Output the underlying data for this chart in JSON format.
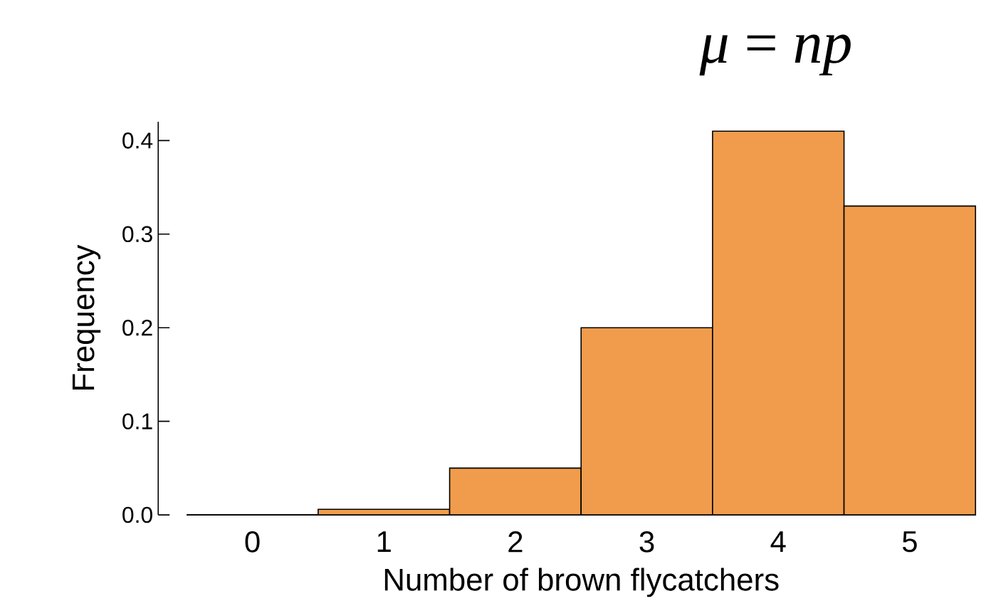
{
  "chart_data": {
    "type": "histogram",
    "title": "*μ* = *np*",
    "xlabel": "Number of brown flycatchers",
    "ylabel": "Frequency",
    "bins": [
      -0.5,
      0.5,
      1.5,
      2.5,
      3.5,
      4.5,
      5.5
    ],
    "values": [
      0,
      0.006,
      0.05,
      0.2,
      0.41,
      0.33
    ],
    "color": "#f09c4c",
    "xlim": [
      -0.5,
      5.5
    ],
    "ylim": [
      0,
      0.42
    ],
    "xticks": [
      0,
      1,
      2,
      3,
      4,
      5
    ],
    "yticks": [
      {
        "value": 0,
        "label": "0.0"
      },
      {
        "value": 0.1,
        "label": "0.1"
      },
      {
        "value": 0.2,
        "label": "0.2"
      },
      {
        "value": 0.3,
        "label": "0.3"
      },
      {
        "value": 0.4,
        "label": "0.4"
      }
    ],
    "grid": false
  }
}
